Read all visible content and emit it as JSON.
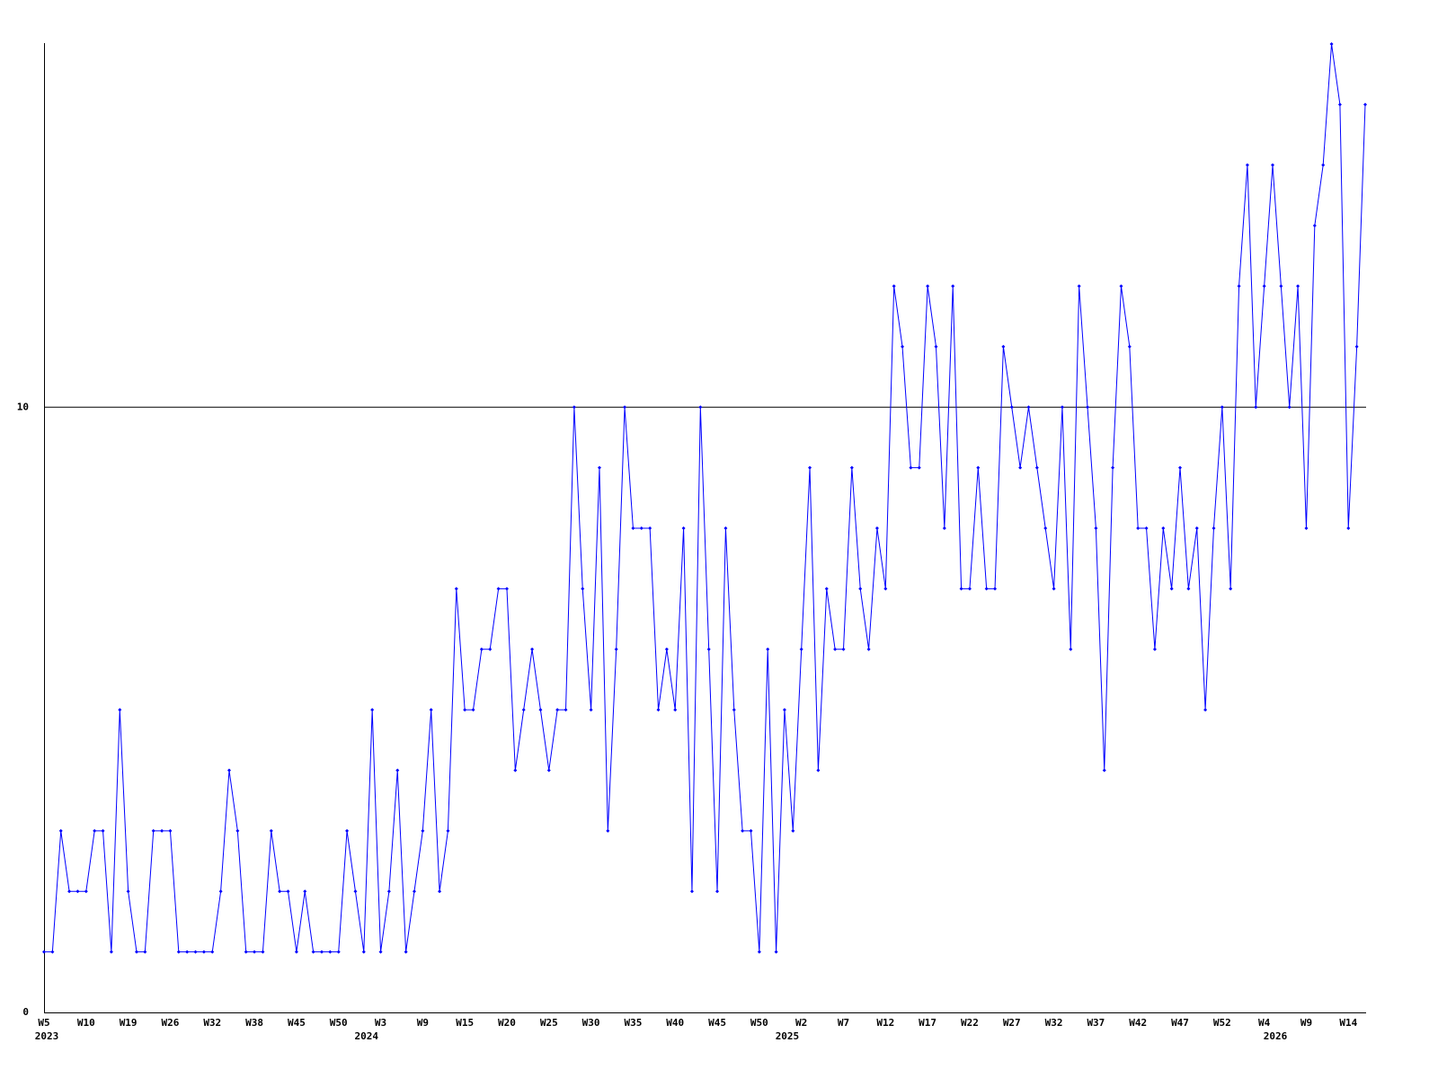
{
  "chart_data": {
    "type": "line",
    "categories": [
      "W5",
      null,
      null,
      null,
      null,
      "W10",
      null,
      null,
      null,
      null,
      "W19",
      null,
      null,
      null,
      null,
      "W26",
      null,
      null,
      null,
      null,
      "W32",
      null,
      null,
      null,
      null,
      "W38",
      null,
      null,
      null,
      null,
      "W45",
      null,
      null,
      null,
      null,
      "W50",
      null,
      null,
      null,
      null,
      "W3",
      null,
      null,
      null,
      null,
      "W9",
      null,
      null,
      null,
      null,
      "W15",
      null,
      null,
      null,
      null,
      "W20",
      null,
      null,
      null,
      null,
      "W25",
      null,
      null,
      null,
      null,
      "W30",
      null,
      null,
      null,
      null,
      "W35",
      null,
      null,
      null,
      null,
      "W40",
      null,
      null,
      null,
      null,
      "W45",
      null,
      null,
      null,
      null,
      "W50",
      null,
      null,
      null,
      null,
      "W2",
      null,
      null,
      null,
      null,
      "W7",
      null,
      null,
      null,
      null,
      "W12",
      null,
      null,
      null,
      null,
      "W17",
      null,
      null,
      null,
      null,
      "W22",
      null,
      null,
      null,
      null,
      "W27",
      null,
      null,
      null,
      null,
      "W32",
      null,
      null,
      null,
      null,
      "W37",
      null,
      null,
      null,
      null,
      "W42",
      null,
      null,
      null,
      null,
      "W47",
      null,
      null,
      null,
      null,
      "W52",
      null,
      null,
      null,
      null,
      "W4",
      null,
      null,
      null,
      null,
      "W9",
      null,
      null,
      null,
      null,
      "W14",
      null,
      null
    ],
    "years": [
      "2023",
      null,
      null,
      null,
      null,
      null,
      null,
      null,
      null,
      null,
      null,
      null,
      null,
      null,
      null,
      null,
      null,
      null,
      null,
      null,
      null,
      null,
      null,
      null,
      null,
      null,
      null,
      null,
      null,
      null,
      null,
      null,
      null,
      null,
      null,
      null,
      null,
      null,
      "2024",
      null,
      null,
      null,
      null,
      null,
      null,
      null,
      null,
      null,
      null,
      null,
      null,
      null,
      null,
      null,
      null,
      null,
      null,
      null,
      null,
      null,
      null,
      null,
      null,
      null,
      null,
      null,
      null,
      null,
      null,
      null,
      null,
      null,
      null,
      null,
      null,
      null,
      null,
      null,
      null,
      null,
      null,
      null,
      null,
      null,
      null,
      null,
      null,
      null,
      "2025",
      null,
      null,
      null,
      null,
      null,
      null,
      null,
      null,
      null,
      null,
      null,
      null,
      null,
      null,
      null,
      null,
      null,
      null,
      null,
      null,
      null,
      null,
      null,
      null,
      null,
      null,
      null,
      null,
      null,
      null,
      null,
      null,
      null,
      null,
      null,
      null,
      null,
      null,
      null,
      null,
      null,
      null,
      null,
      null,
      null,
      null,
      null,
      null,
      null,
      null,
      null,
      null,
      null,
      null,
      null,
      null,
      null,
      "2026",
      null,
      null,
      null,
      null,
      null,
      null,
      null,
      null,
      null,
      null,
      null,
      null,
      null,
      null,
      null,
      null
    ],
    "values": [
      1,
      1,
      3,
      2,
      2,
      2,
      3,
      3,
      1,
      5,
      2,
      1,
      1,
      3,
      3,
      3,
      1,
      1,
      1,
      1,
      1,
      2,
      4,
      3,
      1,
      1,
      1,
      3,
      2,
      2,
      1,
      2,
      1,
      1,
      1,
      1,
      3,
      2,
      1,
      5,
      1,
      2,
      4,
      1,
      2,
      3,
      5,
      2,
      3,
      7,
      5,
      5,
      6,
      6,
      7,
      7,
      4,
      5,
      6,
      5,
      4,
      5,
      5,
      10,
      7,
      5,
      9,
      3,
      6,
      10,
      8,
      8,
      8,
      5,
      6,
      5,
      8,
      2,
      10,
      6,
      2,
      8,
      5,
      3,
      3,
      1,
      6,
      1,
      5,
      3,
      6,
      9,
      4,
      7,
      6,
      6,
      9,
      7,
      6,
      8,
      7,
      12,
      11,
      9,
      9,
      12,
      11,
      8,
      12,
      7,
      7,
      9,
      7,
      7,
      11,
      10,
      9,
      10,
      9,
      8,
      7,
      10,
      6,
      12,
      10,
      8,
      4,
      9,
      12,
      11,
      8,
      8,
      6,
      8,
      7,
      9,
      7,
      8,
      5,
      8,
      10,
      7,
      12,
      14,
      10,
      12,
      14,
      12,
      10,
      12,
      8,
      13,
      14,
      16,
      15,
      8,
      11,
      15
    ],
    "color": "#0000ff",
    "ylim": [
      0,
      16
    ],
    "yticks": [
      0,
      10
    ],
    "grid": true
  }
}
